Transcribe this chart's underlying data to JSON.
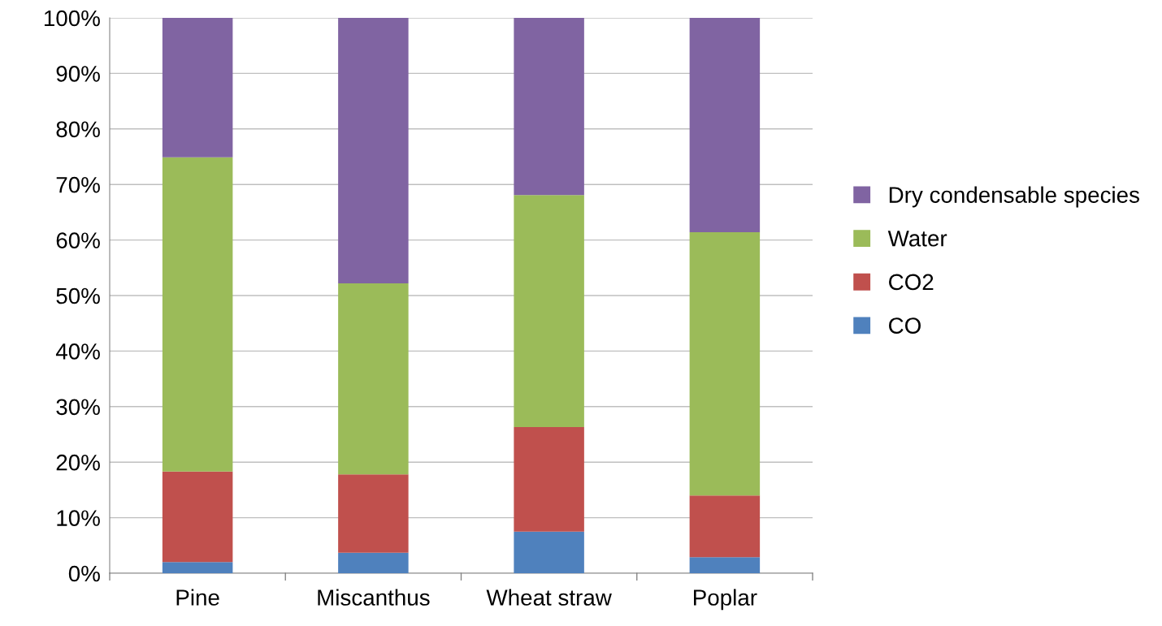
{
  "chart_data": {
    "type": "bar",
    "stacked": true,
    "categories": [
      "Pine",
      "Miscanthus",
      "Wheat straw",
      "Poplar"
    ],
    "series": [
      {
        "name": "CO",
        "color": "#4f81bd",
        "values": [
          2.0,
          3.7,
          7.5,
          2.9
        ]
      },
      {
        "name": "CO2",
        "color": "#c0504d",
        "values": [
          16.3,
          14.1,
          18.8,
          11.1
        ]
      },
      {
        "name": "Water",
        "color": "#9bbb59",
        "values": [
          56.6,
          34.4,
          41.8,
          47.4
        ]
      },
      {
        "name": "Dry condensable species",
        "color": "#8064a2",
        "values": [
          25.1,
          47.8,
          31.9,
          38.6
        ]
      }
    ],
    "ylim": [
      0,
      100
    ],
    "yticks": [
      {
        "value": 0,
        "label": "0%"
      },
      {
        "value": 10,
        "label": "10%"
      },
      {
        "value": 20,
        "label": "20%"
      },
      {
        "value": 30,
        "label": "30%"
      },
      {
        "value": 40,
        "label": "40%"
      },
      {
        "value": 50,
        "label": "50%"
      },
      {
        "value": 60,
        "label": "60%"
      },
      {
        "value": 70,
        "label": "70%"
      },
      {
        "value": 80,
        "label": "80%"
      },
      {
        "value": 90,
        "label": "90%"
      },
      {
        "value": 100,
        "label": "100%"
      }
    ],
    "grid": "y",
    "legend": "right"
  }
}
